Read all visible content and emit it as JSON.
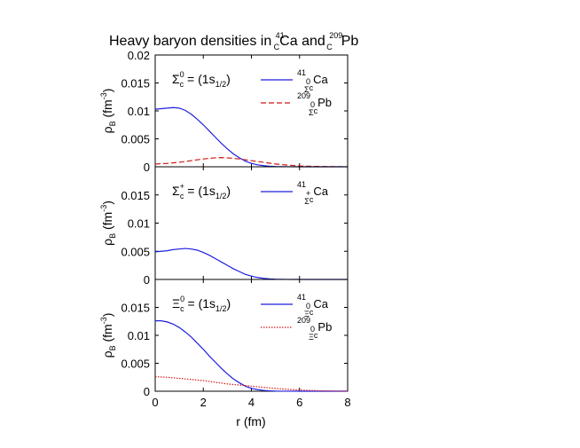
{
  "chart_data": {
    "type": "line",
    "title": {
      "prefix": "Heavy baryon densities in ",
      "ca_mass": "41",
      "ca_sub": "C",
      "ca_sym": "Ca",
      "mid": " and ",
      "pb_mass": "209",
      "pb_sub": "C",
      "pb_sym": "Pb"
    },
    "xlabel": "r (fm)",
    "xlim": [
      0,
      8
    ],
    "xticks": [
      "0",
      "2",
      "4",
      "6",
      "8"
    ],
    "ylabel": {
      "main": "ρ",
      "sub": "B",
      "unit_open": " (fm",
      "unit_exp": "-3",
      "unit_close": ")"
    },
    "panels": [
      {
        "label": {
          "greek": "Σ",
          "charge": "0",
          "sub": "c",
          "rest": " = (1s",
          "state_sub": "1/2",
          "close": ")"
        },
        "ylim": [
          0,
          0.02
        ],
        "yticks": [
          "0",
          "0.005",
          "0.01",
          "0.015",
          "0.02"
        ],
        "series": [
          {
            "legend": {
              "mass": "41",
              "charge": "0",
              "greek": "Σ",
              "sub": "c",
              "sym": "Ca"
            },
            "color": "#1f1fe0",
            "dash": "solid",
            "x": [
              0,
              0.25,
              0.5,
              0.75,
              1.0,
              1.25,
              1.5,
              1.75,
              2.0,
              2.25,
              2.5,
              2.75,
              3.0,
              3.25,
              3.5,
              3.75,
              4.0,
              4.25,
              4.5,
              4.75,
              5.0,
              5.5,
              6.0,
              7.0,
              8.0
            ],
            "y": [
              0.0103,
              0.0104,
              0.0105,
              0.0106,
              0.0105,
              0.0101,
              0.0094,
              0.0085,
              0.0075,
              0.0064,
              0.0053,
              0.0042,
              0.0032,
              0.0023,
              0.0016,
              0.001,
              0.0006,
              0.00035,
              0.0002,
              0.0001,
              5e-05,
              1e-05,
              0,
              0,
              0
            ]
          },
          {
            "legend": {
              "mass": "209",
              "charge": "0",
              "greek": "Σ",
              "sub": "c",
              "sym": "Pb"
            },
            "color": "#d01818",
            "dash": "dashed",
            "x": [
              0,
              0.5,
              1.0,
              1.5,
              2.0,
              2.5,
              2.75,
              3.0,
              3.5,
              4.0,
              4.5,
              5.0,
              5.5,
              6.0,
              6.5,
              7.0,
              7.5,
              8.0
            ],
            "y": [
              0.0005,
              0.0006,
              0.0008,
              0.0011,
              0.0014,
              0.0016,
              0.00165,
              0.0016,
              0.0014,
              0.0011,
              0.0008,
              0.0005,
              0.0003,
              0.00015,
              8e-05,
              4e-05,
              2e-05,
              1e-05
            ]
          }
        ]
      },
      {
        "label": {
          "greek": "Σ",
          "charge": "+",
          "sub": "c",
          "rest": " = (1s",
          "state_sub": "1/2",
          "close": ")"
        },
        "ylim": [
          0,
          0.02
        ],
        "yticks": [
          "0",
          "0.005",
          "0.01",
          "0.015",
          ""
        ],
        "series": [
          {
            "legend": {
              "mass": "41",
              "charge": "+",
              "greek": "Σ",
              "sub": "c",
              "sym": "Ca"
            },
            "color": "#1f1fe0",
            "dash": "solid",
            "x": [
              0,
              0.25,
              0.5,
              0.75,
              1.0,
              1.25,
              1.5,
              1.75,
              2.0,
              2.25,
              2.5,
              2.75,
              3.0,
              3.25,
              3.5,
              3.75,
              4.0,
              4.25,
              4.5,
              4.75,
              5.0,
              5.5,
              6.0,
              7.0,
              8.0
            ],
            "y": [
              0.0049,
              0.005,
              0.0051,
              0.0053,
              0.0054,
              0.0055,
              0.0054,
              0.0052,
              0.0048,
              0.0043,
              0.0037,
              0.0031,
              0.0025,
              0.0019,
              0.0014,
              0.0009,
              0.0006,
              0.00035,
              0.0002,
              0.0001,
              5e-05,
              1e-05,
              0,
              0,
              0
            ]
          }
        ]
      },
      {
        "label": {
          "greek": "Ξ",
          "charge": "0",
          "sub": "c",
          "rest": " = (1s",
          "state_sub": "1/2",
          "close": ")"
        },
        "ylim": [
          0,
          0.02
        ],
        "yticks": [
          "0",
          "0.005",
          "0.01",
          "0.015",
          ""
        ],
        "series": [
          {
            "legend": {
              "mass": "41",
              "charge": "0",
              "greek": "Ξ",
              "sub": "c",
              "sym": "Ca"
            },
            "color": "#1f1fe0",
            "dash": "solid",
            "x": [
              0,
              0.25,
              0.5,
              0.75,
              1.0,
              1.25,
              1.5,
              1.75,
              2.0,
              2.25,
              2.5,
              2.75,
              3.0,
              3.25,
              3.5,
              3.75,
              4.0,
              4.25,
              4.5,
              4.75,
              5.0,
              5.5,
              6.0,
              7.0,
              8.0
            ],
            "y": [
              0.0126,
              0.0126,
              0.0124,
              0.012,
              0.0114,
              0.0106,
              0.0097,
              0.0086,
              0.0075,
              0.0063,
              0.0052,
              0.0041,
              0.0031,
              0.0022,
              0.0015,
              0.0009,
              0.0005,
              0.0003,
              0.00015,
              7e-05,
              3e-05,
              1e-05,
              0,
              0,
              0
            ]
          },
          {
            "legend": {
              "mass": "209",
              "charge": "0",
              "greek": "Ξ",
              "sub": "c",
              "sym": "Pb"
            },
            "color": "#d01818",
            "dash": "dotted",
            "x": [
              0,
              0.5,
              1.0,
              1.5,
              2.0,
              2.5,
              3.0,
              3.5,
              4.0,
              4.5,
              5.0,
              5.5,
              6.0,
              6.5,
              7.0,
              7.5,
              8.0
            ],
            "y": [
              0.0026,
              0.0025,
              0.0023,
              0.0021,
              0.0019,
              0.0016,
              0.0013,
              0.0011,
              0.0009,
              0.0007,
              0.0005,
              0.00035,
              0.00022,
              0.00013,
              7e-05,
              3e-05,
              1e-05
            ]
          }
        ]
      }
    ]
  }
}
